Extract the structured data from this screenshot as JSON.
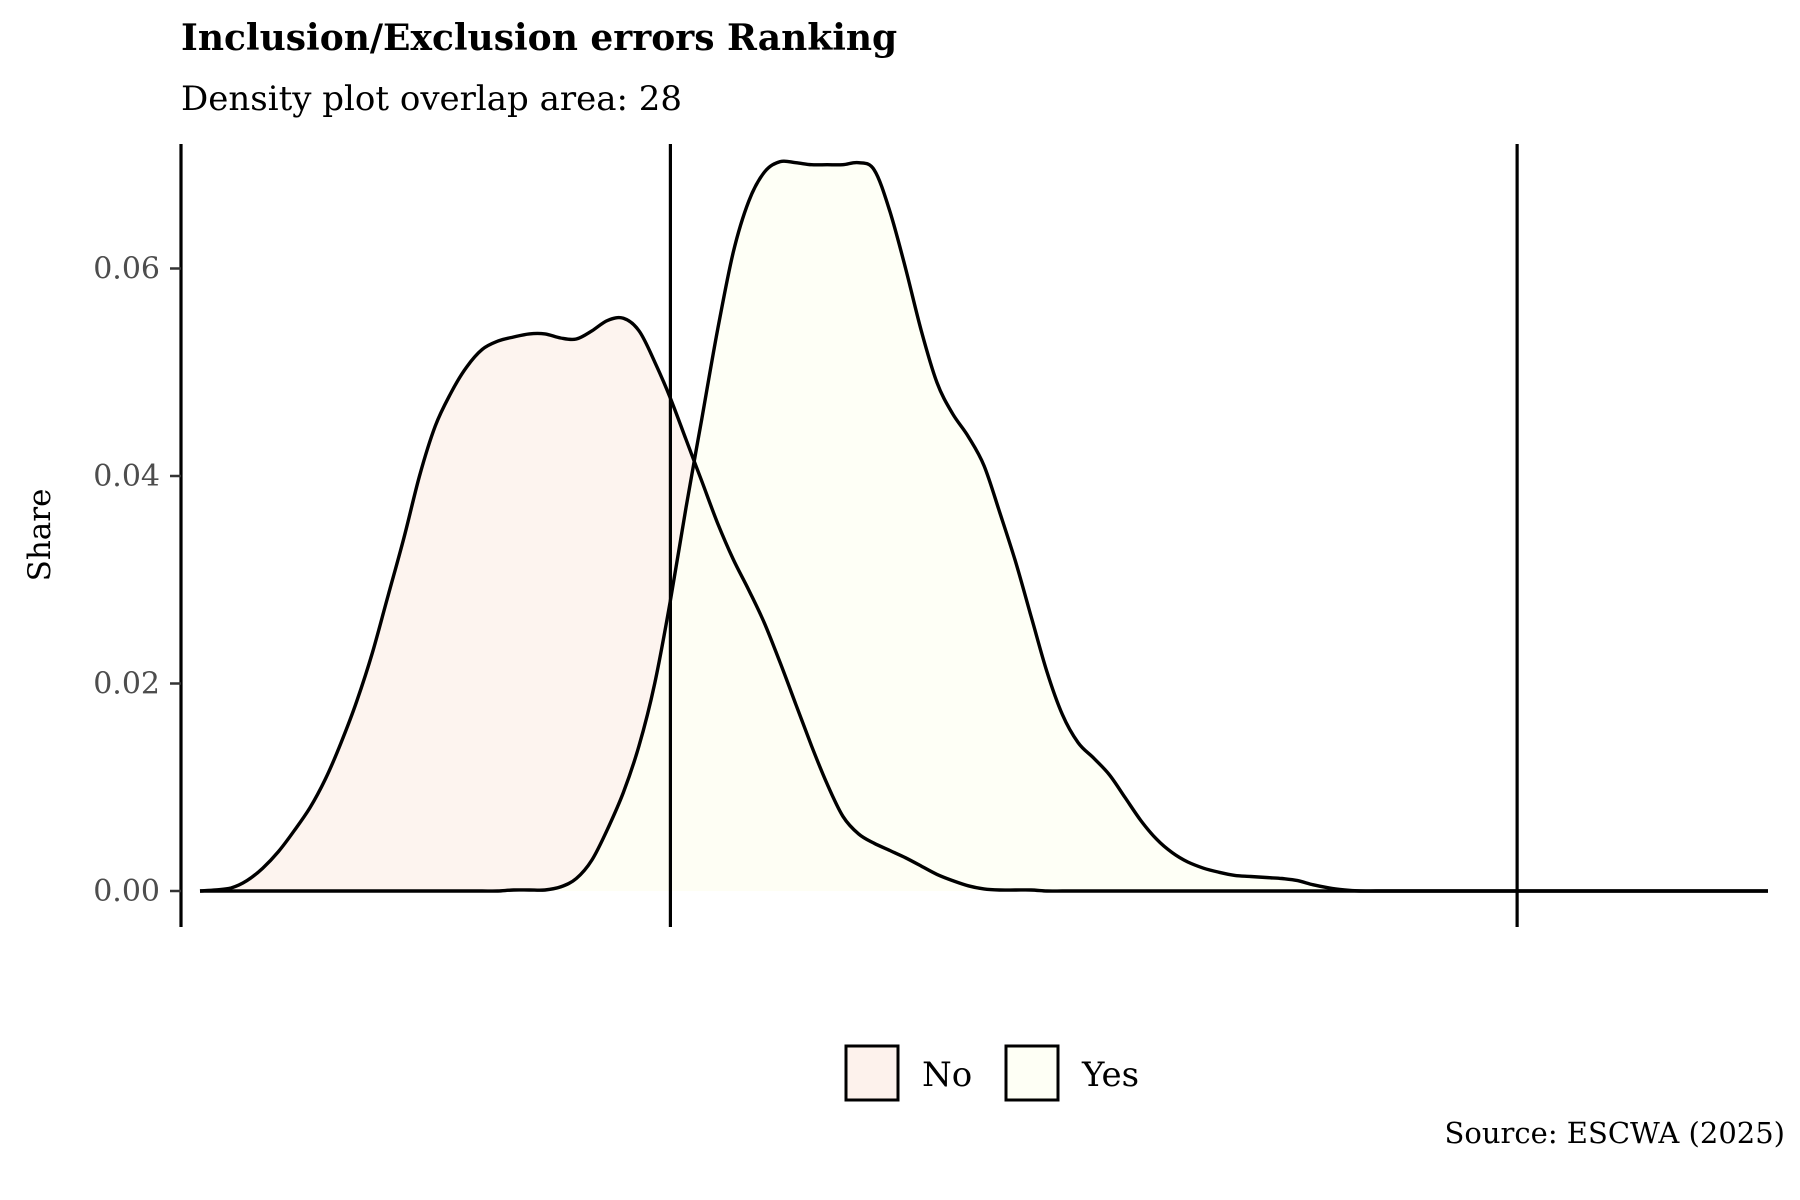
{
  "chart_data": {
    "type": "area",
    "title": "Inclusion/Exclusion errors Ranking",
    "subtitle": "Density plot overlap area: 28",
    "xlabel": "",
    "ylabel": "Share",
    "caption": "Source: ESCWA (2025)",
    "ylim": [
      0,
      0.072
    ],
    "y_ticks": [
      0.0,
      0.02,
      0.04,
      0.06
    ],
    "y_tick_labels": [
      "0.00",
      "0.02",
      "0.04",
      "0.06"
    ],
    "x_tick_labels": [],
    "grid": false,
    "legend_position": "bottom",
    "x": [
      0,
      1,
      2,
      3,
      4,
      5,
      6,
      7,
      8,
      9,
      10,
      11,
      12,
      13,
      14,
      15,
      16,
      17,
      18,
      19,
      20,
      21,
      22,
      23,
      24,
      25,
      26,
      27,
      28,
      29,
      30,
      31,
      32,
      33,
      34,
      35,
      36,
      37,
      38,
      39,
      40,
      41,
      42,
      43,
      44,
      45,
      46,
      47,
      48,
      49,
      50,
      51,
      52,
      53,
      54,
      55,
      56,
      57,
      58,
      59,
      60,
      61,
      62,
      63,
      64,
      65,
      66,
      67,
      68,
      69,
      70,
      71,
      72,
      73,
      74,
      75,
      76,
      77,
      78,
      79,
      80,
      81,
      82,
      83,
      84,
      85,
      86,
      87,
      88,
      89,
      90,
      91,
      92,
      93,
      94,
      95,
      96,
      97,
      98,
      99,
      100
    ],
    "vlines": [
      30,
      84
    ],
    "series": [
      {
        "name": "No",
        "fill": "#fdf2ec",
        "values": [
          0.0,
          0.0001,
          0.0003,
          0.001,
          0.0022,
          0.0038,
          0.0058,
          0.008,
          0.0108,
          0.0143,
          0.0183,
          0.023,
          0.0285,
          0.034,
          0.04,
          0.0448,
          0.048,
          0.0505,
          0.0522,
          0.053,
          0.0534,
          0.0537,
          0.0537,
          0.0533,
          0.0532,
          0.054,
          0.055,
          0.0552,
          0.054,
          0.051,
          0.0475,
          0.0435,
          0.0395,
          0.0355,
          0.032,
          0.029,
          0.0258,
          0.022,
          0.018,
          0.014,
          0.0103,
          0.0072,
          0.0055,
          0.0046,
          0.0039,
          0.0032,
          0.0024,
          0.0016,
          0.001,
          0.0005,
          0.0002,
          0.0001,
          0.0001,
          0.0001,
          0.0,
          0.0,
          0.0,
          0.0,
          0.0,
          0.0,
          0.0,
          0.0,
          0.0,
          0.0,
          0.0,
          0.0,
          0.0,
          0.0,
          0.0,
          0.0,
          0.0,
          0.0,
          0.0,
          0.0,
          0.0,
          0.0,
          0.0,
          0.0,
          0.0,
          0.0,
          0.0,
          0.0,
          0.0,
          0.0,
          0.0,
          0.0,
          0.0,
          0.0,
          0.0,
          0.0,
          0.0,
          0.0,
          0.0,
          0.0,
          0.0,
          0.0,
          0.0,
          0.0,
          0.0,
          0.0,
          0.0
        ]
      },
      {
        "name": "Yes",
        "fill": "#fefff5",
        "values": [
          0.0,
          0.0,
          0.0,
          0.0,
          0.0,
          0.0,
          0.0,
          0.0,
          0.0,
          0.0,
          0.0,
          0.0,
          0.0,
          0.0,
          0.0,
          0.0,
          0.0,
          0.0,
          0.0,
          0.0,
          0.0001,
          0.0001,
          0.0001,
          0.0004,
          0.0012,
          0.003,
          0.006,
          0.0095,
          0.014,
          0.02,
          0.028,
          0.037,
          0.0455,
          0.054,
          0.0615,
          0.0665,
          0.0693,
          0.0703,
          0.0702,
          0.07,
          0.07,
          0.07,
          0.0702,
          0.0695,
          0.0655,
          0.06,
          0.054,
          0.049,
          0.046,
          0.0438,
          0.041,
          0.0365,
          0.0318,
          0.0265,
          0.0212,
          0.017,
          0.0143,
          0.0128,
          0.0112,
          0.009,
          0.0068,
          0.005,
          0.0037,
          0.0028,
          0.0022,
          0.0018,
          0.0015,
          0.0014,
          0.0013,
          0.0012,
          0.001,
          0.0006,
          0.0003,
          0.0001,
          0.0,
          0.0,
          0.0,
          0.0,
          0.0,
          0.0,
          0.0,
          0.0,
          0.0,
          0.0,
          0.0,
          0.0,
          0.0,
          0.0,
          0.0,
          0.0,
          0.0,
          0.0,
          0.0,
          0.0,
          0.0,
          0.0,
          0.0,
          0.0,
          0.0,
          0.0,
          0.0
        ]
      }
    ]
  }
}
